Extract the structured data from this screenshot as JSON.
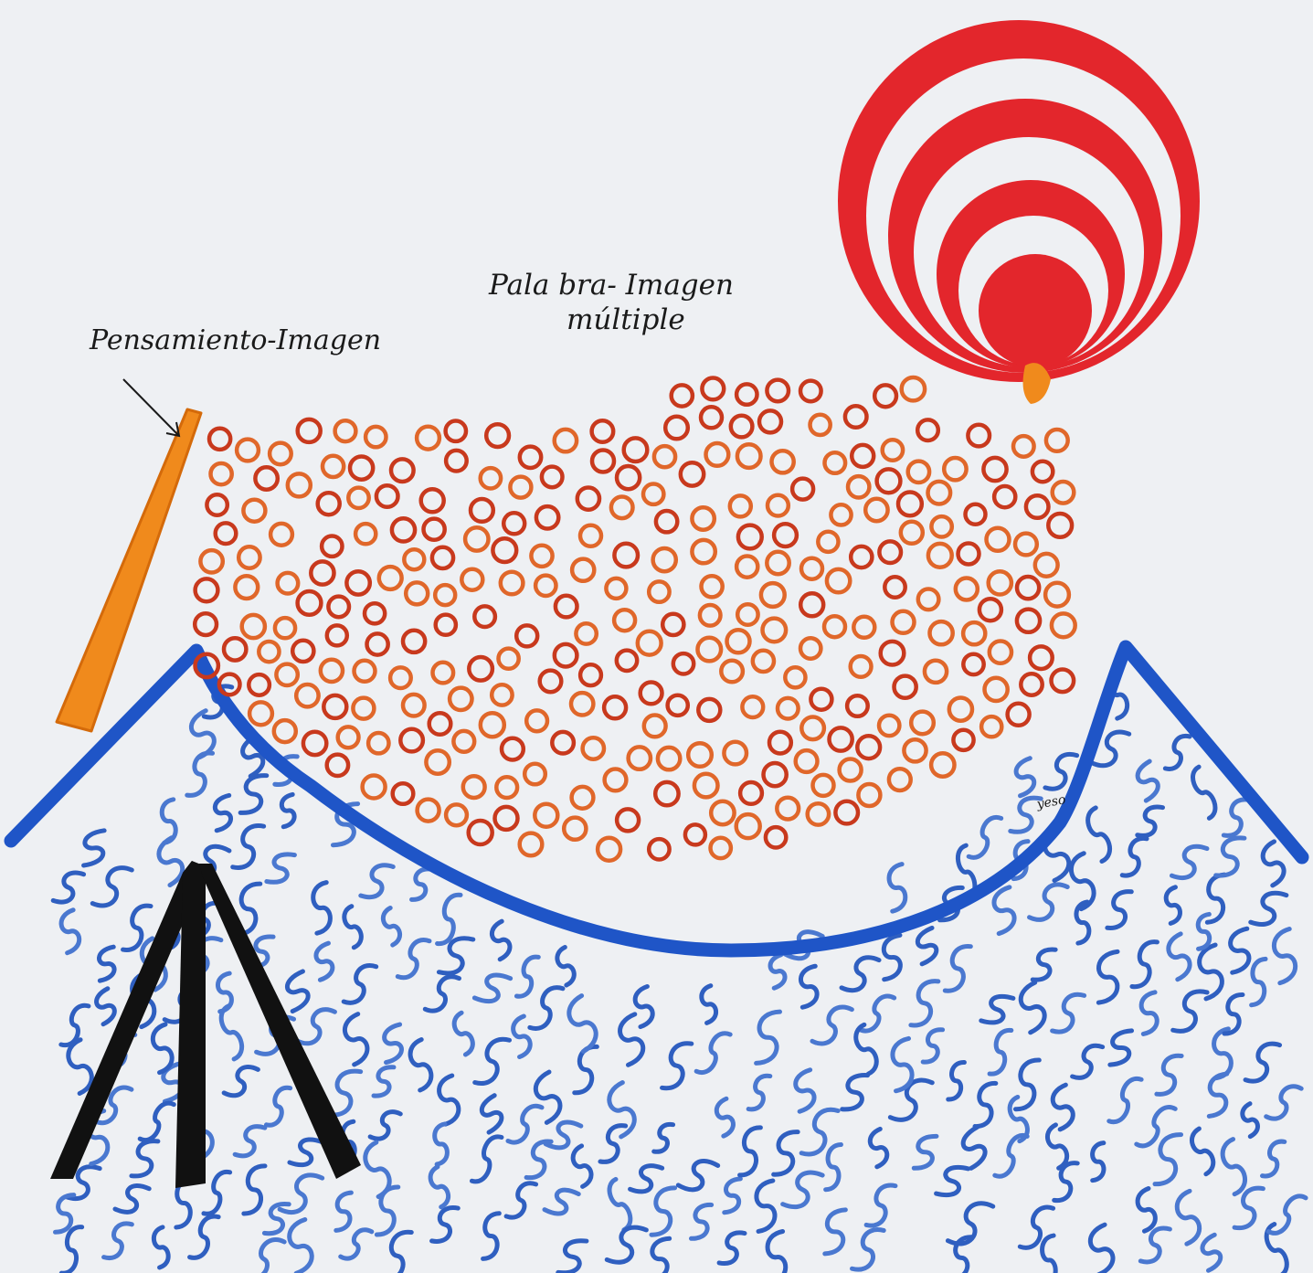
{
  "labels": {
    "pensamiento": "Pensamiento-Imagen",
    "palabra_line1": "Pala bra- Imagen",
    "palabra_line2": "múltiple",
    "signature": "yeso"
  },
  "colors": {
    "paper": "#eef0f3",
    "spiral_red": "#e3262c",
    "ring_orange": "#e0672a",
    "ring_dark": "#b8331a",
    "stick_orange": "#f08a1c",
    "bowl_blue": "#1f55c7",
    "squiggle_blue": "#4a78d0",
    "tent_black": "#111111",
    "pen_ink": "#1a1a1a"
  }
}
